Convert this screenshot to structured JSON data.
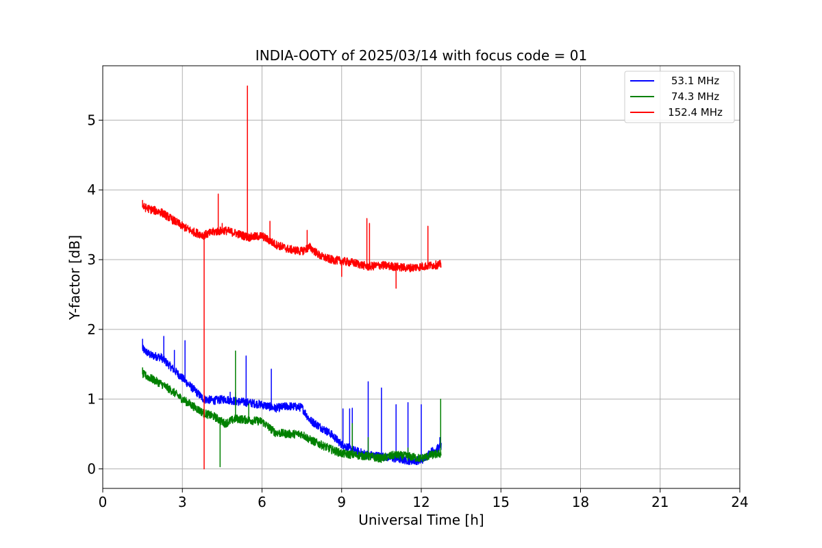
{
  "chart_data": {
    "type": "line",
    "title": "INDIA-OOTY of 2025/03/14 with focus code = 01",
    "xlabel": "Universal Time [h]",
    "ylabel": "Y-factor [dB]",
    "xlim": [
      0,
      24
    ],
    "ylim": [
      -0.28,
      5.78
    ],
    "xticks": [
      0,
      3,
      6,
      9,
      12,
      15,
      18,
      21,
      24
    ],
    "yticks": [
      0,
      1,
      2,
      3,
      4,
      5
    ],
    "grid": true,
    "legend_position": "top-right",
    "noise_amplitude": 0.06,
    "series": [
      {
        "name": "53.1 MHz",
        "color": "#0000ff",
        "x": [
          1.5,
          1.8,
          2.2,
          2.6,
          3.0,
          3.4,
          3.8,
          4.2,
          4.6,
          5.0,
          5.5,
          6.0,
          6.5,
          7.0,
          7.5,
          7.8,
          8.2,
          8.6,
          9.0,
          9.5,
          10.0,
          10.5,
          11.0,
          11.5,
          12.0,
          12.4,
          12.75
        ],
        "values": [
          1.72,
          1.63,
          1.6,
          1.45,
          1.3,
          1.15,
          1.0,
          0.98,
          1.0,
          0.97,
          0.95,
          0.92,
          0.87,
          0.9,
          0.88,
          0.7,
          0.6,
          0.5,
          0.35,
          0.26,
          0.2,
          0.18,
          0.15,
          0.12,
          0.12,
          0.25,
          0.32
        ],
        "spikes": [
          [
            1.5,
            1.86
          ],
          [
            2.3,
            1.9
          ],
          [
            2.7,
            1.7
          ],
          [
            3.1,
            1.84
          ],
          [
            4.8,
            1.1
          ],
          [
            5.0,
            1.1
          ],
          [
            5.4,
            1.62
          ],
          [
            6.35,
            1.43
          ],
          [
            9.05,
            0.86
          ],
          [
            9.3,
            0.86
          ],
          [
            9.4,
            0.87
          ],
          [
            10.0,
            1.25
          ],
          [
            10.5,
            1.16
          ],
          [
            11.05,
            0.92
          ],
          [
            11.5,
            0.95
          ],
          [
            12.0,
            0.92
          ],
          [
            12.7,
            0.45
          ]
        ]
      },
      {
        "name": "74.3 MHz",
        "color": "#008000",
        "x": [
          1.5,
          1.8,
          2.2,
          2.6,
          3.0,
          3.4,
          3.8,
          4.2,
          4.6,
          5.0,
          5.5,
          6.0,
          6.5,
          7.0,
          7.5,
          7.8,
          8.2,
          8.6,
          9.0,
          9.5,
          10.0,
          10.5,
          11.0,
          11.5,
          12.0,
          12.4,
          12.75
        ],
        "values": [
          1.36,
          1.3,
          1.22,
          1.12,
          1.0,
          0.9,
          0.8,
          0.75,
          0.65,
          0.72,
          0.7,
          0.68,
          0.52,
          0.5,
          0.5,
          0.42,
          0.35,
          0.28,
          0.22,
          0.2,
          0.18,
          0.15,
          0.2,
          0.18,
          0.15,
          0.2,
          0.22
        ],
        "spikes": [
          [
            1.5,
            1.45
          ],
          [
            4.42,
            0.03
          ],
          [
            5.0,
            1.69
          ],
          [
            5.5,
            0.93
          ],
          [
            9.4,
            0.65
          ],
          [
            10.0,
            0.45
          ],
          [
            11.5,
            0.3
          ],
          [
            12.05,
            0.2
          ],
          [
            12.73,
            1.0
          ]
        ]
      },
      {
        "name": "152.4 MHz",
        "color": "#ff0000",
        "x": [
          1.5,
          1.8,
          2.2,
          2.6,
          3.0,
          3.4,
          3.8,
          4.2,
          4.6,
          5.0,
          5.5,
          6.0,
          6.5,
          7.0,
          7.5,
          7.8,
          8.2,
          8.6,
          9.0,
          9.5,
          10.0,
          10.5,
          11.0,
          11.5,
          12.0,
          12.4,
          12.75
        ],
        "values": [
          3.76,
          3.72,
          3.68,
          3.58,
          3.48,
          3.4,
          3.35,
          3.4,
          3.42,
          3.38,
          3.32,
          3.34,
          3.22,
          3.15,
          3.12,
          3.18,
          3.05,
          3.0,
          2.98,
          2.95,
          2.9,
          2.92,
          2.9,
          2.88,
          2.9,
          2.92,
          2.93
        ],
        "spikes": [
          [
            1.5,
            3.85
          ],
          [
            3.82,
            0.0
          ],
          [
            4.35,
            3.94
          ],
          [
            4.5,
            3.52
          ],
          [
            5.45,
            5.49
          ],
          [
            6.3,
            3.55
          ],
          [
            7.7,
            3.42
          ],
          [
            9.0,
            2.76
          ],
          [
            9.95,
            3.59
          ],
          [
            10.05,
            3.52
          ],
          [
            11.05,
            2.59
          ],
          [
            12.25,
            3.48
          ]
        ]
      }
    ]
  }
}
